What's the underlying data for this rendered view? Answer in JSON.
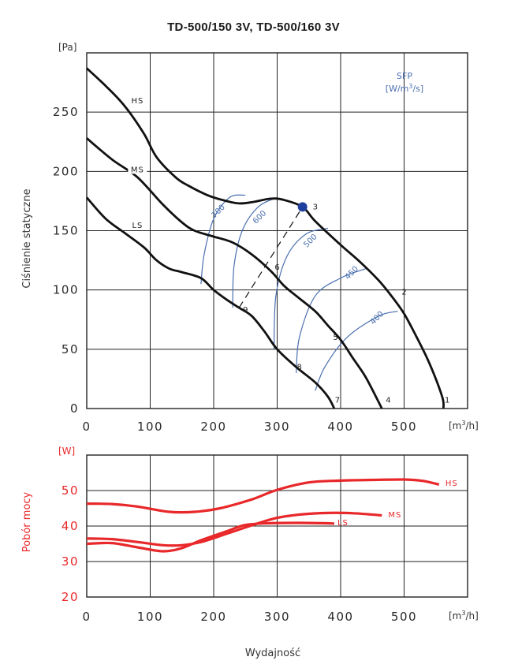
{
  "title": "TD-500/150 3V, TD-500/160 3V",
  "xlabel": "Wydajność",
  "chart_data": [
    {
      "type": "line",
      "name": "pressure",
      "ylabel": "Ciśnienie statyczne",
      "y_unit": "[Pa]",
      "x_unit": "[m³/h]",
      "xlim": [
        0,
        600
      ],
      "ylim": [
        0,
        300
      ],
      "x_ticks": [
        "0",
        "100",
        "200",
        "300",
        "400",
        "500"
      ],
      "x_tick_values": [
        0,
        100,
        200,
        300,
        400,
        500
      ],
      "y_ticks": [
        "0",
        "50",
        "100",
        "150",
        "200",
        "250"
      ],
      "y_tick_values": [
        0,
        50,
        100,
        150,
        200,
        250
      ],
      "series": [
        {
          "name": "HS",
          "label_x": 80,
          "label_y": 258,
          "x": [
            0,
            30,
            60,
            90,
            110,
            140,
            160,
            190,
            220,
            240,
            260,
            290,
            310,
            340,
            360,
            400,
            430,
            460,
            480,
            500,
            520,
            540,
            560,
            562
          ],
          "y": [
            287,
            272,
            255,
            232,
            212,
            195,
            188,
            180,
            175,
            173,
            174,
            177,
            176,
            170,
            158,
            138,
            124,
            108,
            95,
            80,
            60,
            38,
            10,
            0
          ]
        },
        {
          "name": "MS",
          "label_x": 80,
          "label_y": 200,
          "x": [
            0,
            40,
            80,
            120,
            150,
            170,
            200,
            230,
            260,
            290,
            310,
            330,
            360,
            380,
            400,
            420,
            440,
            465
          ],
          "y": [
            228,
            210,
            195,
            172,
            157,
            150,
            145,
            140,
            130,
            116,
            104,
            95,
            82,
            70,
            58,
            42,
            26,
            0
          ]
        },
        {
          "name": "LS",
          "label_x": 80,
          "label_y": 153,
          "x": [
            0,
            30,
            60,
            90,
            110,
            130,
            150,
            180,
            200,
            220,
            240,
            260,
            280,
            300,
            330,
            360,
            380,
            390
          ],
          "y": [
            178,
            160,
            148,
            136,
            125,
            118,
            115,
            110,
            100,
            92,
            85,
            78,
            65,
            50,
            35,
            22,
            10,
            0
          ]
        }
      ],
      "point_labels": [
        {
          "label": "1",
          "x": 568,
          "y": 5
        },
        {
          "label": "2",
          "x": 500,
          "y": 96
        },
        {
          "label": "3",
          "x": 360,
          "y": 168
        },
        {
          "label": "4",
          "x": 475,
          "y": 5
        },
        {
          "label": "5",
          "x": 392,
          "y": 58
        },
        {
          "label": "6",
          "x": 300,
          "y": 117
        },
        {
          "label": "7",
          "x": 395,
          "y": 5
        },
        {
          "label": "8",
          "x": 335,
          "y": 33
        },
        {
          "label": "9",
          "x": 250,
          "y": 81
        }
      ],
      "operating_point": {
        "x": 340,
        "y": 170
      },
      "operating_line": {
        "x": [
          240,
          340
        ],
        "y": [
          85,
          170
        ]
      },
      "sfp": {
        "title": "SFP",
        "unit": "[W/m³/s]",
        "color": "#4a6fb0",
        "lines": [
          {
            "label": "700",
            "label_x": 210,
            "label_y": 165,
            "x": [
              180,
              185,
              200,
              225,
              250
            ],
            "y": [
              105,
              130,
              160,
              178,
              180
            ]
          },
          {
            "label": "600",
            "label_x": 275,
            "label_y": 160,
            "x": [
              230,
              232,
              245,
              270,
              300
            ],
            "y": [
              85,
              120,
              150,
              170,
              178
            ]
          },
          {
            "label": "500",
            "label_x": 355,
            "label_y": 140,
            "x": [
              295,
              298,
              315,
              345,
              380
            ],
            "y": [
              50,
              95,
              128,
              147,
              152
            ]
          },
          {
            "label": "450",
            "label_x": 420,
            "label_y": 113,
            "x": [
              330,
              335,
              360,
              400,
              440
            ],
            "y": [
              30,
              60,
              95,
              110,
              118
            ]
          },
          {
            "label": "400",
            "label_x": 460,
            "label_y": 75,
            "x": [
              360,
              375,
              410,
              460,
              490
            ],
            "y": [
              15,
              35,
              60,
              78,
              82
            ]
          }
        ]
      }
    },
    {
      "type": "line",
      "name": "power",
      "ylabel": "Pobór mocy",
      "y_unit": "[W]",
      "x_unit": "[m³/h]",
      "xlim": [
        0,
        600
      ],
      "ylim": [
        20,
        60
      ],
      "x_ticks": [
        "0",
        "100",
        "200",
        "300",
        "400",
        "500"
      ],
      "x_tick_values": [
        0,
        100,
        200,
        300,
        400,
        500
      ],
      "y_ticks": [
        "20",
        "30",
        "40",
        "50"
      ],
      "y_tick_values": [
        20,
        30,
        40,
        50
      ],
      "color": "#e8282a",
      "series": [
        {
          "name": "HS",
          "x": [
            0,
            40,
            80,
            130,
            170,
            210,
            260,
            300,
            350,
            400,
            450,
            500,
            530,
            555
          ],
          "y": [
            46.3,
            46.2,
            45.5,
            44,
            44,
            45,
            47.5,
            50.2,
            52.3,
            52.8,
            53,
            53.1,
            52.7,
            51.7
          ]
        },
        {
          "name": "MS",
          "x": [
            0,
            40,
            80,
            120,
            150,
            180,
            220,
            260,
            300,
            340,
            380,
            420,
            465
          ],
          "y": [
            36.5,
            36.3,
            35.5,
            34.6,
            34.6,
            35.5,
            37.8,
            40.2,
            42.3,
            43.3,
            43.7,
            43.6,
            43
          ]
        },
        {
          "name": "LS",
          "x": [
            0,
            40,
            80,
            120,
            150,
            180,
            220,
            250,
            290,
            330,
            370,
            390
          ],
          "y": [
            35,
            35.2,
            34,
            32.9,
            33.8,
            36,
            38.5,
            40.3,
            40.8,
            40.9,
            40.8,
            40.7
          ]
        }
      ],
      "labels": [
        {
          "name": "HS",
          "x": 565,
          "y": 51.3
        },
        {
          "name": "MS",
          "x": 475,
          "y": 42.5
        },
        {
          "name": "LS",
          "x": 395,
          "y": 40.2
        }
      ]
    }
  ]
}
